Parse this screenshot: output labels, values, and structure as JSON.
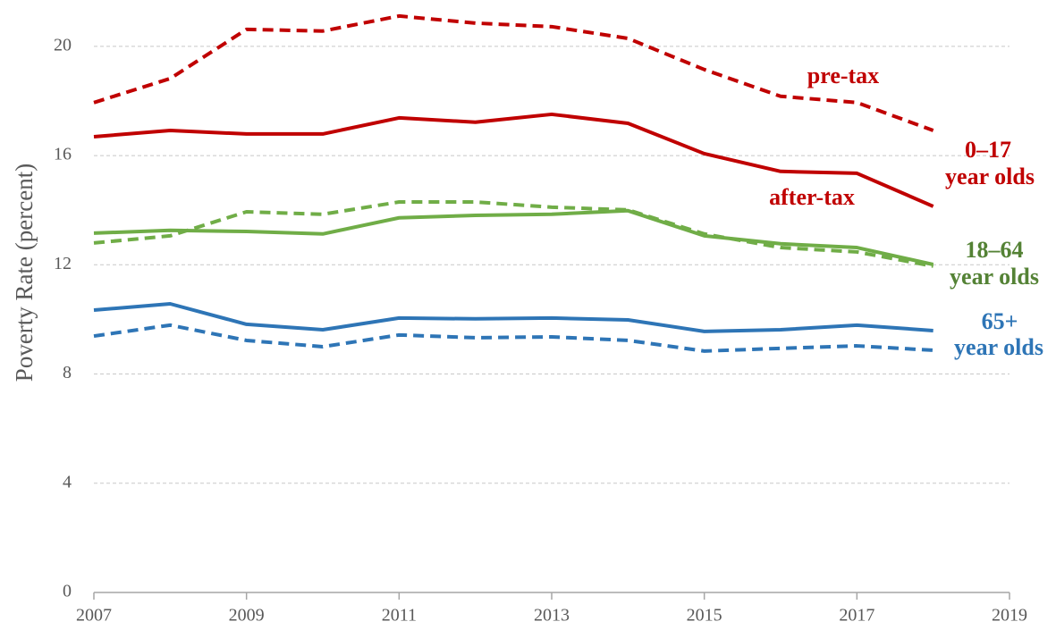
{
  "chart_data": {
    "type": "line",
    "y_label": "Poverty Rate (percent)",
    "x": [
      2007,
      2008,
      2009,
      2010,
      2011,
      2012,
      2013,
      2014,
      2015,
      2016,
      2017,
      2018
    ],
    "xlim": [
      2007,
      2019
    ],
    "xticks": [
      2007,
      2009,
      2011,
      2013,
      2015,
      2017,
      2019
    ],
    "ylim": [
      0,
      21.5
    ],
    "yticks": [
      0,
      4,
      8,
      12,
      16,
      20
    ],
    "grid": true,
    "series": [
      {
        "color": "#c00000",
        "dashed": true,
        "values": [
          17.94,
          18.82,
          20.62,
          20.56,
          21.11,
          20.85,
          20.72,
          20.29,
          19.15,
          18.17,
          17.94,
          16.92
        ]
      },
      {
        "color": "#c00000",
        "dashed": false,
        "values": [
          16.69,
          16.92,
          16.79,
          16.79,
          17.38,
          17.22,
          17.51,
          17.18,
          16.07,
          15.42,
          15.35,
          14.14
        ]
      },
      {
        "color": "#70ad47",
        "dashed": true,
        "values": [
          12.8,
          13.06,
          13.94,
          13.85,
          14.3,
          14.3,
          14.11,
          14.01,
          13.13,
          12.63,
          12.47,
          11.95
        ]
      },
      {
        "color": "#70ad47",
        "dashed": false,
        "values": [
          13.16,
          13.26,
          13.22,
          13.13,
          13.72,
          13.81,
          13.85,
          13.98,
          13.06,
          12.77,
          12.63,
          12.01
        ]
      },
      {
        "color": "#2e75b6",
        "dashed": true,
        "values": [
          9.39,
          9.79,
          9.23,
          9.0,
          9.43,
          9.33,
          9.36,
          9.23,
          8.84,
          8.94,
          9.03,
          8.87
        ]
      },
      {
        "color": "#2e75b6",
        "dashed": false,
        "values": [
          10.34,
          10.57,
          9.82,
          9.62,
          10.05,
          10.02,
          10.05,
          9.98,
          9.56,
          9.62,
          9.79,
          9.59
        ]
      }
    ],
    "annotations": [
      {
        "text": "pre-tax",
        "color": "#c00000"
      },
      {
        "text": "after-tax",
        "color": "#c00000"
      },
      {
        "text": "0–17",
        "color": "#c00000"
      },
      {
        "text": "year olds",
        "color": "#c00000"
      },
      {
        "text": "18–64",
        "color": "#548235"
      },
      {
        "text": "year olds",
        "color": "#548235"
      },
      {
        "text": "65+",
        "color": "#2e75b6"
      },
      {
        "text": "year olds",
        "color": "#2e75b6"
      }
    ]
  }
}
